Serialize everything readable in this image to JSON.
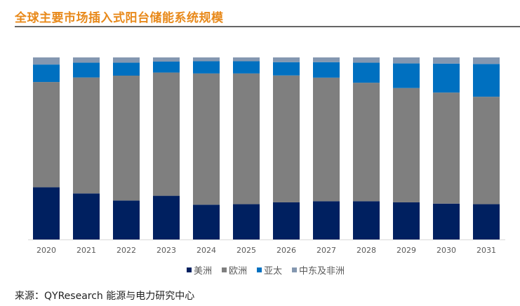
{
  "chart_data": {
    "type": "bar",
    "stacked": "percent",
    "title": "全球主要市场插入式阳台储能系统规模",
    "categories": [
      "2020",
      "2021",
      "2022",
      "2023",
      "2024",
      "2025",
      "2026",
      "2027",
      "2028",
      "2029",
      "2030",
      "2031"
    ],
    "series": [
      {
        "name": "美洲",
        "color": "#002060",
        "values": [
          28.7,
          25.3,
          21.4,
          24.0,
          19.1,
          19.4,
          20.4,
          21.0,
          21.0,
          20.4,
          19.7,
          19.4
        ]
      },
      {
        "name": "欧洲",
        "color": "#7f7f7f",
        "values": [
          57.8,
          63.7,
          68.6,
          67.7,
          72.1,
          71.8,
          69.7,
          67.9,
          65.1,
          62.8,
          61.0,
          59.0
        ]
      },
      {
        "name": "亚太",
        "color": "#0070c0",
        "values": [
          9.6,
          8.1,
          7.1,
          6.0,
          6.7,
          6.7,
          7.3,
          8.5,
          11.0,
          13.5,
          15.9,
          18.0
        ]
      },
      {
        "name": "中东及非洲",
        "color": "#8497b0",
        "values": [
          3.9,
          2.9,
          2.9,
          2.3,
          2.1,
          2.1,
          2.6,
          2.6,
          2.9,
          3.3,
          3.4,
          3.6
        ]
      }
    ],
    "ylim": [
      0,
      100
    ],
    "grid": false,
    "legend": "bottom",
    "source": "来源：QYResearch 能源与电力研究中心"
  }
}
